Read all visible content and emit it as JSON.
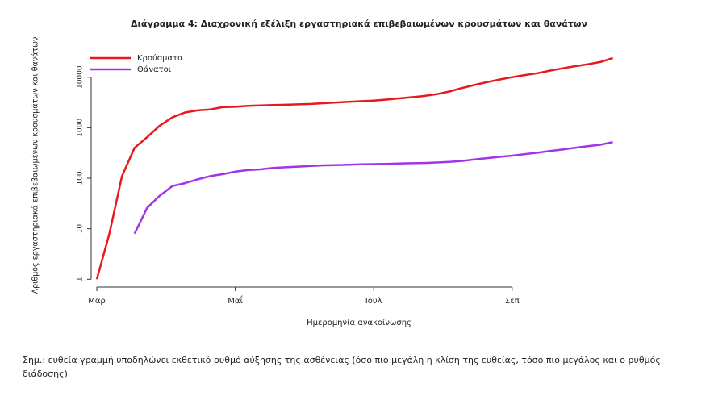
{
  "chart_data": {
    "type": "line",
    "title": "Διάγραμμα 4: Διαχρονική εξέλιξη εργαστηριακά επιβεβαιωμένων κρουσμάτων και θανάτων",
    "x_label": "Ημερομηνία ανακοίνωσης",
    "y_label": "Αριθμός εργαστηριακά επιβεβαιωμένων κρουσμάτων και θανάτων",
    "note": "Σημ.: ευθεία γραμμή υποδηλώνει εκθετικό ρυθμό αύξησης της ασθένειας (όσο πιο μεγάλη η κλίση της ευθείας, τόσο πιο μεγάλος και ο ρυθμός διάδοσης)",
    "categories": [
      "Μαρ",
      null,
      null,
      null,
      null,
      null,
      null,
      null,
      null,
      null,
      null,
      "Μαΐ",
      null,
      null,
      null,
      null,
      null,
      null,
      null,
      null,
      null,
      null,
      "Ιουλ",
      null,
      null,
      null,
      null,
      null,
      null,
      null,
      null,
      null,
      null,
      "Σεπ",
      null,
      null,
      null,
      null,
      null,
      null,
      null,
      null
    ],
    "log_scale": true,
    "ylim": [
      0.7,
      40000
    ],
    "yticks": [
      1,
      10,
      100,
      1000,
      10000
    ],
    "legend": "upper left",
    "series": [
      {
        "name": "Κρούσματα",
        "color": "#e8181c",
        "values": [
          1,
          8,
          110,
          400,
          650,
          1100,
          1600,
          2000,
          2200,
          2300,
          2550,
          2600,
          2700,
          2750,
          2800,
          2850,
          2900,
          2950,
          3050,
          3150,
          3250,
          3350,
          3450,
          3600,
          3800,
          4000,
          4250,
          4600,
          5200,
          6100,
          7000,
          8000,
          9000,
          10000,
          11000,
          12000,
          13500,
          15000,
          16500,
          18000,
          20000,
          24000
        ]
      },
      {
        "name": "Θάνατοι",
        "color": "#a134e8",
        "values": [
          null,
          null,
          null,
          8,
          26,
          45,
          70,
          80,
          95,
          110,
          120,
          135,
          145,
          150,
          160,
          165,
          170,
          175,
          180,
          182,
          185,
          188,
          190,
          192,
          195,
          198,
          200,
          205,
          210,
          220,
          235,
          250,
          265,
          280,
          300,
          320,
          345,
          370,
          400,
          430,
          460,
          520
        ]
      }
    ]
  }
}
